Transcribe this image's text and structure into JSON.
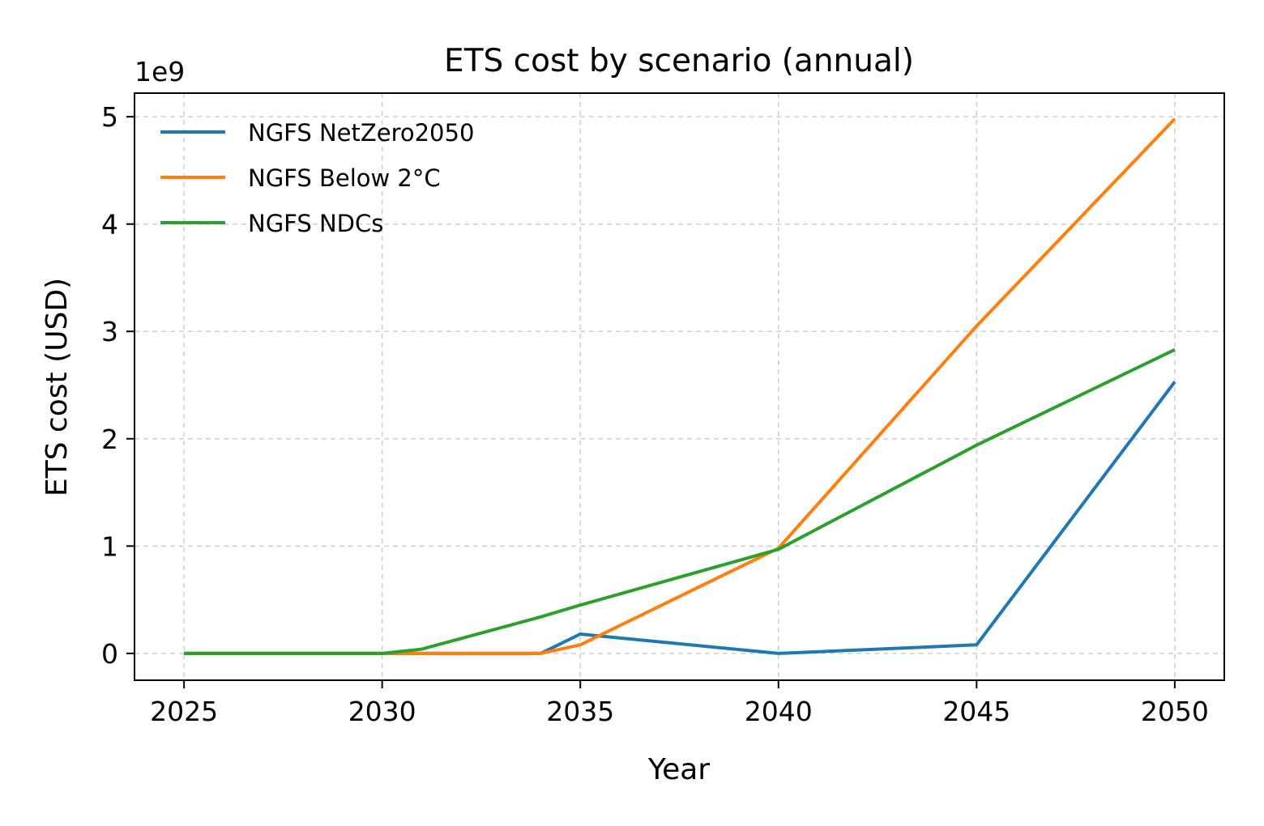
{
  "chart_data": {
    "type": "line",
    "title": "ETS cost by scenario (annual)",
    "xlabel": "Year",
    "ylabel": "ETS cost (USD)",
    "y_offset_label": "1e9",
    "y_scale_factor": 1000000000,
    "xlim": [
      2023.75,
      2051.25
    ],
    "ylim": [
      -0.25,
      5.22
    ],
    "x_ticks": [
      2025,
      2030,
      2035,
      2040,
      2045,
      2050
    ],
    "x_tick_labels": [
      "2025",
      "2030",
      "2035",
      "2040",
      "2045",
      "2050"
    ],
    "y_ticks": [
      0,
      1,
      2,
      3,
      4,
      5
    ],
    "y_tick_labels": [
      "0",
      "1",
      "2",
      "3",
      "4",
      "5"
    ],
    "grid": true,
    "legend_position": "top-left",
    "series": [
      {
        "name": "NGFS NetZero2050",
        "color": "#1f77b4",
        "points": [
          [
            2025,
            0
          ],
          [
            2030,
            0
          ],
          [
            2034,
            0
          ],
          [
            2035,
            0.18
          ],
          [
            2040,
            0.0
          ],
          [
            2045,
            0.08
          ],
          [
            2050,
            2.53
          ]
        ]
      },
      {
        "name": "NGFS Below 2°C",
        "color": "#ff7f0e",
        "points": [
          [
            2025,
            0
          ],
          [
            2030,
            0
          ],
          [
            2034,
            0
          ],
          [
            2035,
            0.08
          ],
          [
            2040,
            0.98
          ],
          [
            2045,
            3.05
          ],
          [
            2050,
            4.98
          ]
        ]
      },
      {
        "name": "NGFS NDCs",
        "color": "#2ca02c",
        "points": [
          [
            2025,
            0
          ],
          [
            2030,
            0
          ],
          [
            2031,
            0.04
          ],
          [
            2034,
            0.34
          ],
          [
            2035,
            0.45
          ],
          [
            2040,
            0.97
          ],
          [
            2045,
            1.94
          ],
          [
            2050,
            2.83
          ]
        ]
      }
    ]
  }
}
